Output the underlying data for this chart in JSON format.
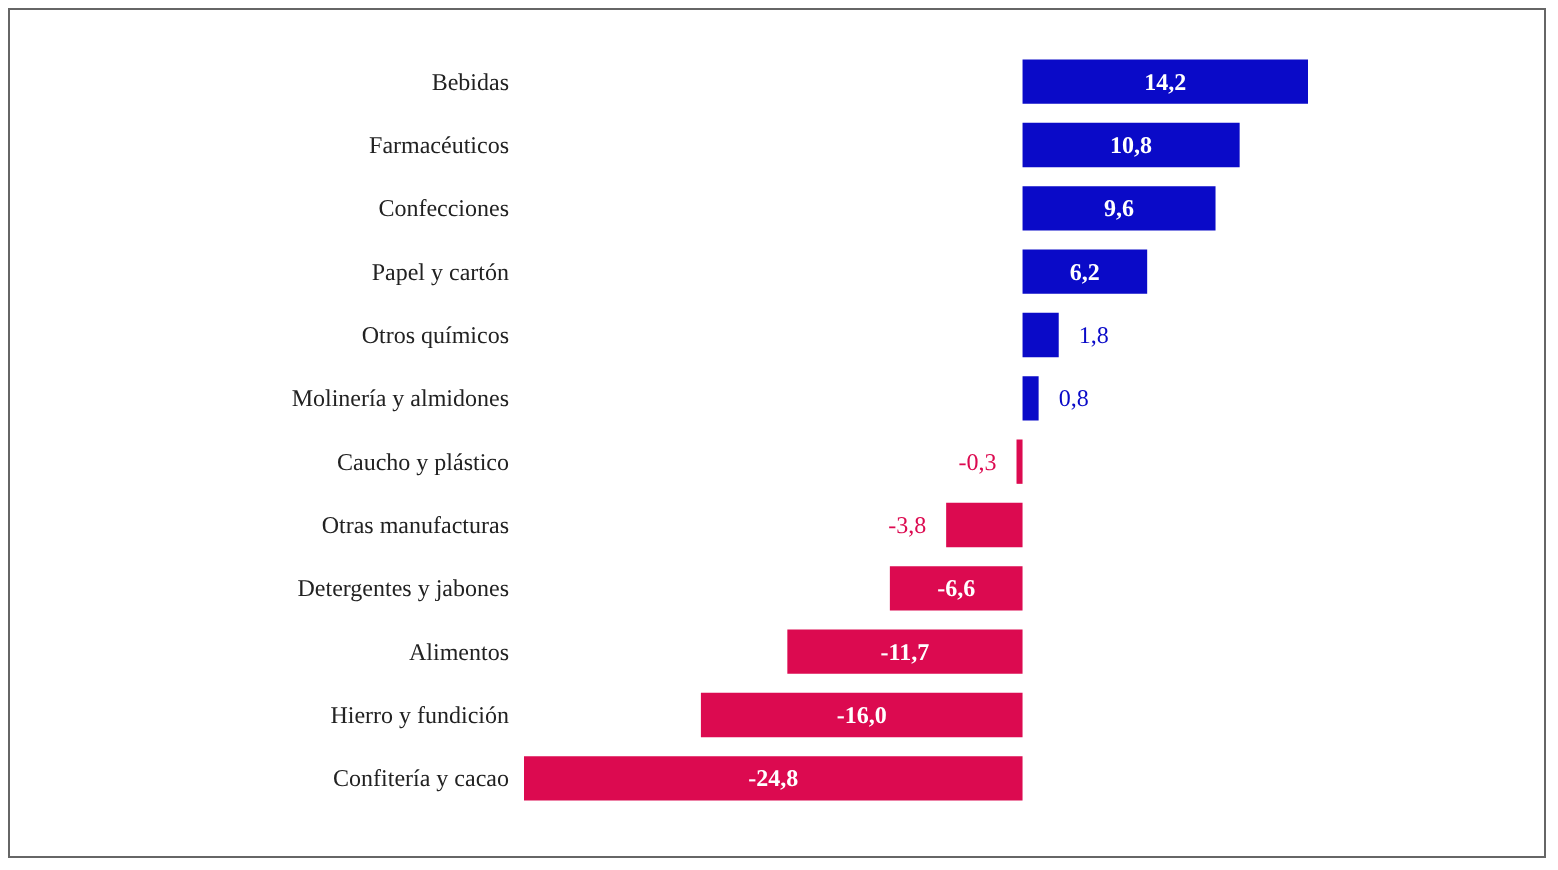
{
  "chart_data": {
    "type": "bar",
    "orientation": "horizontal",
    "categories": [
      "Bebidas",
      "Farmacéuticos",
      "Confecciones",
      "Papel y cartón",
      "Otros químicos",
      "Molinería y almidones",
      "Caucho y plástico",
      "Otras manufacturas",
      "Detergentes y jabones",
      "Alimentos",
      "Hierro y fundición",
      "Confitería y cacao"
    ],
    "values": [
      14.2,
      10.8,
      9.6,
      6.2,
      1.8,
      0.8,
      -0.3,
      -3.8,
      -6.6,
      -11.7,
      -16.0,
      -24.8
    ],
    "value_labels": [
      "14,2",
      "10,8",
      "9,6",
      "6,2",
      "1,8",
      "0,8",
      "-0,3",
      "-3,8",
      "-6,6",
      "-11,7",
      "-16,0",
      "-24,8"
    ],
    "colors": [
      "#0a0ac8",
      "#0a0ac8",
      "#0a0ac8",
      "#0a0ac8",
      "#0a0ac8",
      "#0a0ac8",
      "#dc0a50",
      "#dc0a50",
      "#dc0a50",
      "#dc0a50",
      "#dc0a50",
      "#dc0a50"
    ],
    "grid": false,
    "legend": false
  }
}
